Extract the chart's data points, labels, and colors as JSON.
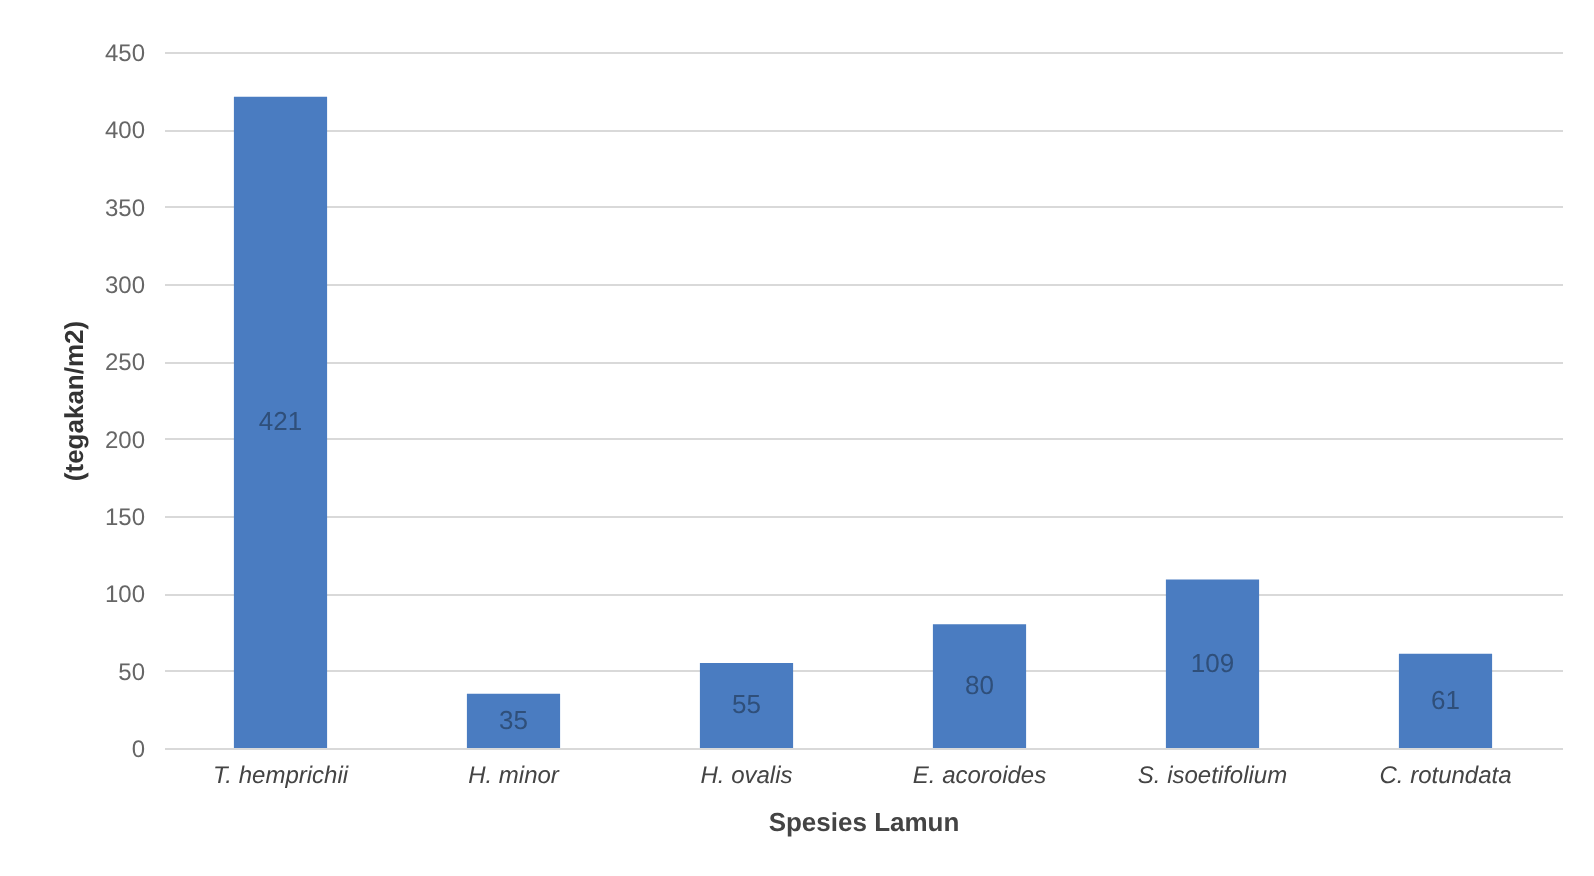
{
  "chart_data": {
    "type": "bar",
    "xlabel": "Spesies Lamun",
    "ylabel": "(tegakan/m2)",
    "categories": [
      "T. hemprichii",
      "H. minor",
      "H. ovalis",
      "E. acoroides",
      "S. isoetifolium",
      "C. rotundata"
    ],
    "values": [
      421,
      35,
      55,
      80,
      109,
      61
    ],
    "color": "#4a7cc1",
    "ylim": [
      0,
      450
    ],
    "yticks": [
      0,
      50,
      100,
      150,
      200,
      250,
      300,
      350,
      400,
      450
    ],
    "grid": "y",
    "data_labels": true
  }
}
